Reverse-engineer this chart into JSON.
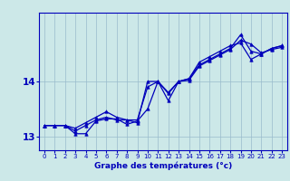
{
  "xlabel": "Graphe des températures (°c)",
  "x": [
    0,
    1,
    2,
    3,
    4,
    5,
    6,
    7,
    8,
    9,
    10,
    11,
    12,
    13,
    14,
    15,
    16,
    17,
    18,
    19,
    20,
    21,
    22,
    23
  ],
  "line1": [
    13.2,
    13.2,
    13.2,
    13.1,
    13.2,
    13.3,
    13.35,
    13.3,
    13.3,
    13.3,
    13.9,
    14.0,
    13.65,
    14.0,
    14.05,
    14.3,
    14.4,
    14.5,
    14.6,
    14.85,
    14.55,
    14.5,
    14.6,
    14.65
  ],
  "line2": [
    13.2,
    13.2,
    13.2,
    13.15,
    13.25,
    13.35,
    13.45,
    13.35,
    13.3,
    13.25,
    14.0,
    14.0,
    13.8,
    14.0,
    14.05,
    14.35,
    14.45,
    14.55,
    14.65,
    14.7,
    14.4,
    14.5,
    14.6,
    14.65
  ],
  "line3": [
    13.2,
    13.2,
    13.2,
    13.05,
    13.05,
    13.28,
    13.32,
    13.32,
    13.22,
    13.28,
    13.5,
    14.0,
    13.78,
    14.0,
    14.02,
    14.28,
    14.38,
    14.48,
    14.58,
    14.75,
    14.68,
    14.52,
    14.58,
    14.62
  ],
  "line_color": "#0000bb",
  "bg_color": "#cce8e8",
  "grid_color": "#99bbcc",
  "ylim": [
    12.75,
    15.25
  ],
  "yticks": [
    13,
    14
  ],
  "xlim": [
    -0.5,
    23.5
  ],
  "marker": "^",
  "markersize": 2.5,
  "linewidth": 0.9,
  "xlabel_fontsize": 6.5,
  "xtick_fontsize": 5.0,
  "ytick_fontsize": 7.5
}
